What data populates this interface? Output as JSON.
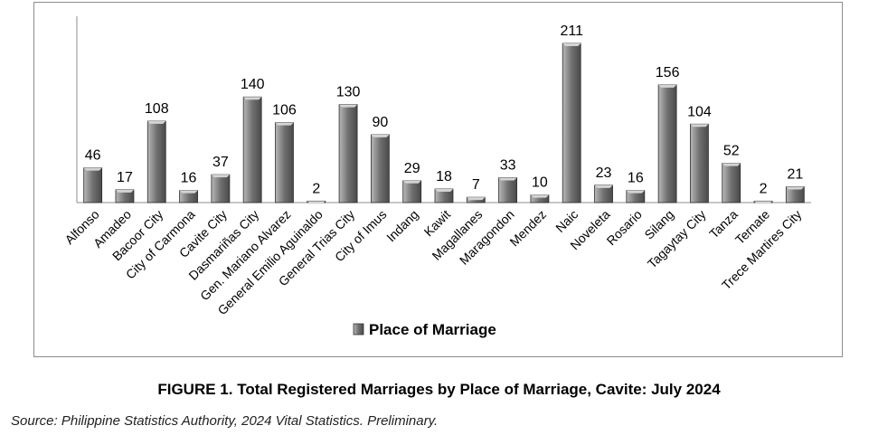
{
  "chart_data": {
    "type": "bar",
    "categories": [
      "Alfonso",
      "Amadeo",
      "Bacoor City",
      "City of Carmona",
      "Cavite City",
      "Dasmariñas City",
      "Gen. Mariano Alvarez",
      "General Emilio Aguinaldo",
      "General Trias City",
      "City of Imus",
      "Indang",
      "Kawit",
      "Magallanes",
      "Maragondon",
      "Mendez",
      "Naic",
      "Noveleta",
      "Rosario",
      "Silang",
      "Tagaytay City",
      "Tanza",
      "Ternate",
      "Trece Martires City"
    ],
    "series": [
      {
        "name": "Place of Marriage",
        "values": [
          46,
          17,
          108,
          16,
          37,
          140,
          106,
          2,
          130,
          90,
          29,
          18,
          7,
          33,
          10,
          211,
          23,
          16,
          156,
          104,
          52,
          2,
          21
        ],
        "color": "#7a7a7a"
      }
    ],
    "ylim": [
      0,
      211
    ],
    "legend_position": "bottom-center",
    "grid": false,
    "data_labels": true
  },
  "caption": "FIGURE 1. Total Registered Marriages by Place of Marriage, Cavite: July 2024",
  "source": "Source: Philippine Statistics Authority, 2024 Vital Statistics. Preliminary."
}
